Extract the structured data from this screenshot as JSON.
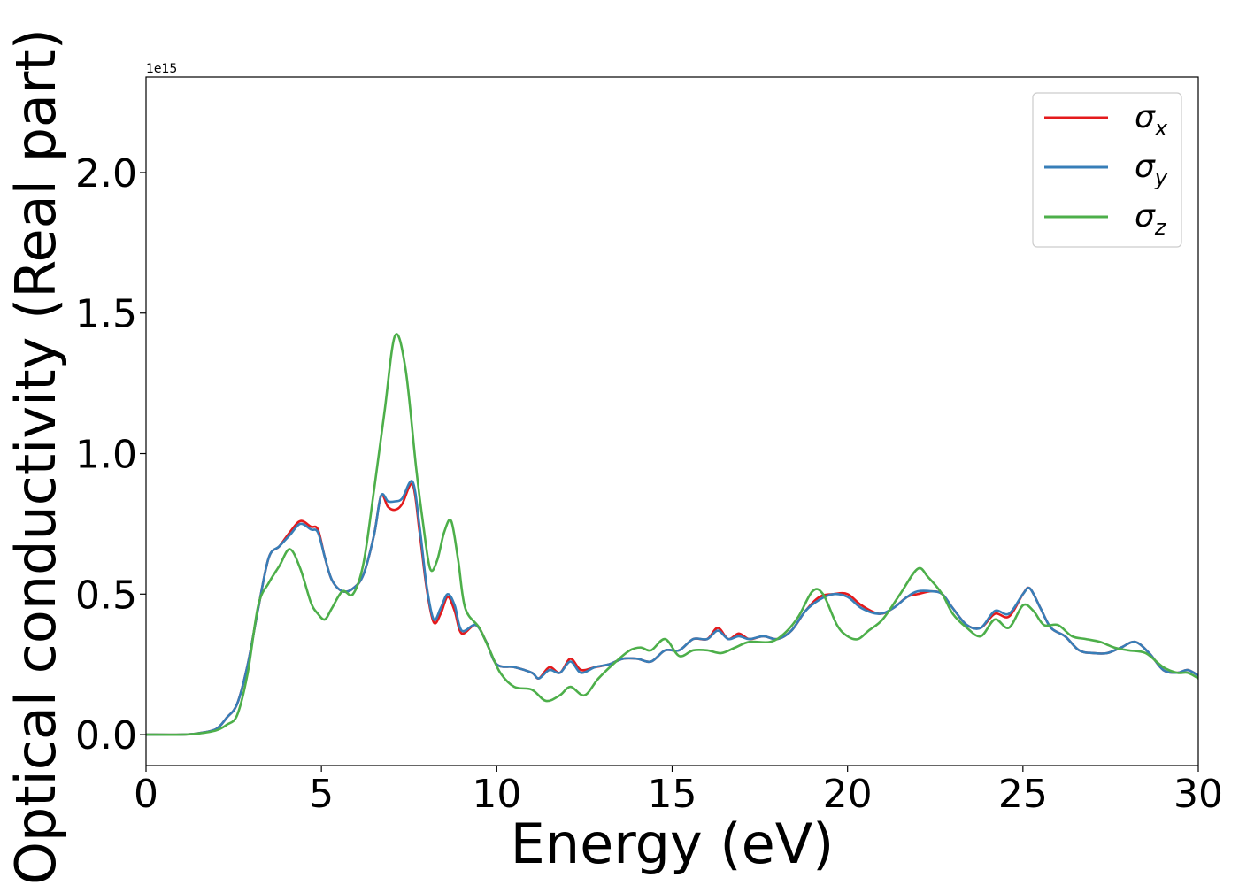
{
  "chart_data": {
    "type": "line",
    "title": "",
    "xlabel": "Energy (eV)",
    "ylabel": "Optical conductivity (Real part)",
    "y_offset_label": "1e15",
    "xlim": [
      0,
      30
    ],
    "ylim": [
      -0.11,
      2.34
    ],
    "x_ticks": [
      0,
      5,
      10,
      15,
      20,
      25,
      30
    ],
    "x_tick_labels": [
      "0",
      "5",
      "10",
      "15",
      "20",
      "25",
      "30"
    ],
    "y_ticks": [
      0.0,
      0.5,
      1.0,
      1.5,
      2.0
    ],
    "y_tick_labels": [
      "0.0",
      "0.5",
      "1.0",
      "1.5",
      "2.0"
    ],
    "grid": false,
    "legend_position": "top-right",
    "series": [
      {
        "name": "σx",
        "legend_symbol": "σ",
        "legend_subscript": "x",
        "color": "#e41a1c",
        "points": [
          [
            0,
            0
          ],
          [
            1,
            0.0
          ],
          [
            1.5,
            0.005
          ],
          [
            2,
            0.02
          ],
          [
            2.3,
            0.06
          ],
          [
            2.6,
            0.11
          ],
          [
            2.9,
            0.25
          ],
          [
            3.2,
            0.45
          ],
          [
            3.5,
            0.63
          ],
          [
            3.8,
            0.67
          ],
          [
            4.1,
            0.72
          ],
          [
            4.4,
            0.76
          ],
          [
            4.7,
            0.74
          ],
          [
            4.9,
            0.73
          ],
          [
            5.1,
            0.63
          ],
          [
            5.3,
            0.55
          ],
          [
            5.6,
            0.51
          ],
          [
            5.9,
            0.52
          ],
          [
            6.2,
            0.57
          ],
          [
            6.5,
            0.71
          ],
          [
            6.7,
            0.85
          ],
          [
            6.9,
            0.81
          ],
          [
            7.1,
            0.8
          ],
          [
            7.3,
            0.82
          ],
          [
            7.6,
            0.89
          ],
          [
            7.8,
            0.72
          ],
          [
            8.0,
            0.52
          ],
          [
            8.2,
            0.4
          ],
          [
            8.4,
            0.43
          ],
          [
            8.6,
            0.49
          ],
          [
            8.8,
            0.44
          ],
          [
            9.0,
            0.36
          ],
          [
            9.4,
            0.39
          ],
          [
            9.7,
            0.33
          ],
          [
            10.0,
            0.25
          ],
          [
            10.5,
            0.24
          ],
          [
            11.0,
            0.22
          ],
          [
            11.2,
            0.2
          ],
          [
            11.5,
            0.24
          ],
          [
            11.8,
            0.22
          ],
          [
            12.1,
            0.27
          ],
          [
            12.4,
            0.23
          ],
          [
            12.8,
            0.24
          ],
          [
            13.2,
            0.25
          ],
          [
            13.6,
            0.27
          ],
          [
            14.0,
            0.27
          ],
          [
            14.4,
            0.26
          ],
          [
            14.8,
            0.3
          ],
          [
            15.2,
            0.3
          ],
          [
            15.6,
            0.34
          ],
          [
            16.0,
            0.34
          ],
          [
            16.3,
            0.38
          ],
          [
            16.6,
            0.34
          ],
          [
            16.9,
            0.36
          ],
          [
            17.2,
            0.34
          ],
          [
            17.6,
            0.35
          ],
          [
            18.0,
            0.34
          ],
          [
            18.4,
            0.37
          ],
          [
            18.8,
            0.44
          ],
          [
            19.2,
            0.49
          ],
          [
            19.6,
            0.5
          ],
          [
            20.0,
            0.5
          ],
          [
            20.4,
            0.46
          ],
          [
            20.9,
            0.43
          ],
          [
            21.3,
            0.45
          ],
          [
            21.7,
            0.49
          ],
          [
            22.0,
            0.5
          ],
          [
            22.4,
            0.51
          ],
          [
            22.7,
            0.5
          ],
          [
            23.0,
            0.45
          ],
          [
            23.4,
            0.39
          ],
          [
            23.8,
            0.38
          ],
          [
            24.2,
            0.43
          ],
          [
            24.6,
            0.42
          ],
          [
            25.0,
            0.5
          ],
          [
            25.2,
            0.52
          ],
          [
            25.5,
            0.45
          ],
          [
            25.8,
            0.38
          ],
          [
            26.2,
            0.35
          ],
          [
            26.6,
            0.3
          ],
          [
            27.0,
            0.29
          ],
          [
            27.4,
            0.29
          ],
          [
            27.8,
            0.31
          ],
          [
            28.2,
            0.33
          ],
          [
            28.6,
            0.29
          ],
          [
            29.0,
            0.23
          ],
          [
            29.4,
            0.22
          ],
          [
            29.7,
            0.23
          ],
          [
            30.0,
            0.21
          ]
        ]
      },
      {
        "name": "σy",
        "legend_symbol": "σ",
        "legend_subscript": "y",
        "color": "#377eb8",
        "points": [
          [
            0,
            0
          ],
          [
            1,
            0.0
          ],
          [
            1.5,
            0.005
          ],
          [
            2,
            0.02
          ],
          [
            2.3,
            0.06
          ],
          [
            2.6,
            0.11
          ],
          [
            2.9,
            0.25
          ],
          [
            3.2,
            0.45
          ],
          [
            3.5,
            0.63
          ],
          [
            3.8,
            0.67
          ],
          [
            4.1,
            0.71
          ],
          [
            4.4,
            0.75
          ],
          [
            4.7,
            0.73
          ],
          [
            4.9,
            0.72
          ],
          [
            5.1,
            0.63
          ],
          [
            5.3,
            0.55
          ],
          [
            5.6,
            0.51
          ],
          [
            5.9,
            0.52
          ],
          [
            6.2,
            0.57
          ],
          [
            6.5,
            0.71
          ],
          [
            6.7,
            0.85
          ],
          [
            6.9,
            0.83
          ],
          [
            7.1,
            0.83
          ],
          [
            7.3,
            0.84
          ],
          [
            7.6,
            0.9
          ],
          [
            7.8,
            0.74
          ],
          [
            8.0,
            0.53
          ],
          [
            8.2,
            0.41
          ],
          [
            8.4,
            0.45
          ],
          [
            8.6,
            0.5
          ],
          [
            8.8,
            0.46
          ],
          [
            9.0,
            0.37
          ],
          [
            9.4,
            0.39
          ],
          [
            9.7,
            0.33
          ],
          [
            10.0,
            0.25
          ],
          [
            10.5,
            0.24
          ],
          [
            11.0,
            0.22
          ],
          [
            11.2,
            0.2
          ],
          [
            11.5,
            0.23
          ],
          [
            11.8,
            0.22
          ],
          [
            12.1,
            0.26
          ],
          [
            12.4,
            0.22
          ],
          [
            12.8,
            0.24
          ],
          [
            13.2,
            0.25
          ],
          [
            13.6,
            0.27
          ],
          [
            14.0,
            0.27
          ],
          [
            14.4,
            0.26
          ],
          [
            14.8,
            0.3
          ],
          [
            15.2,
            0.3
          ],
          [
            15.6,
            0.34
          ],
          [
            16.0,
            0.34
          ],
          [
            16.3,
            0.37
          ],
          [
            16.6,
            0.34
          ],
          [
            16.9,
            0.35
          ],
          [
            17.2,
            0.34
          ],
          [
            17.6,
            0.35
          ],
          [
            18.0,
            0.34
          ],
          [
            18.4,
            0.37
          ],
          [
            18.8,
            0.44
          ],
          [
            19.2,
            0.48
          ],
          [
            19.6,
            0.5
          ],
          [
            20.0,
            0.49
          ],
          [
            20.4,
            0.45
          ],
          [
            20.9,
            0.43
          ],
          [
            21.3,
            0.45
          ],
          [
            21.7,
            0.49
          ],
          [
            22.0,
            0.51
          ],
          [
            22.4,
            0.51
          ],
          [
            22.7,
            0.5
          ],
          [
            23.0,
            0.45
          ],
          [
            23.4,
            0.39
          ],
          [
            23.8,
            0.38
          ],
          [
            24.2,
            0.44
          ],
          [
            24.6,
            0.43
          ],
          [
            25.0,
            0.5
          ],
          [
            25.2,
            0.52
          ],
          [
            25.5,
            0.45
          ],
          [
            25.8,
            0.38
          ],
          [
            26.2,
            0.35
          ],
          [
            26.6,
            0.3
          ],
          [
            27.0,
            0.29
          ],
          [
            27.4,
            0.29
          ],
          [
            27.8,
            0.31
          ],
          [
            28.2,
            0.33
          ],
          [
            28.6,
            0.29
          ],
          [
            29.0,
            0.23
          ],
          [
            29.4,
            0.22
          ],
          [
            29.7,
            0.23
          ],
          [
            30.0,
            0.21
          ]
        ]
      },
      {
        "name": "σz",
        "legend_symbol": "σ",
        "legend_subscript": "z",
        "color": "#4daf4a",
        "points": [
          [
            0,
            0
          ],
          [
            1,
            0.0
          ],
          [
            1.5,
            0.004
          ],
          [
            2,
            0.015
          ],
          [
            2.3,
            0.035
          ],
          [
            2.6,
            0.07
          ],
          [
            2.9,
            0.22
          ],
          [
            3.2,
            0.46
          ],
          [
            3.5,
            0.54
          ],
          [
            3.8,
            0.6
          ],
          [
            4.1,
            0.66
          ],
          [
            4.4,
            0.59
          ],
          [
            4.7,
            0.47
          ],
          [
            4.9,
            0.43
          ],
          [
            5.1,
            0.41
          ],
          [
            5.3,
            0.45
          ],
          [
            5.6,
            0.51
          ],
          [
            5.9,
            0.5
          ],
          [
            6.2,
            0.61
          ],
          [
            6.5,
            0.87
          ],
          [
            6.8,
            1.15
          ],
          [
            7.1,
            1.42
          ],
          [
            7.4,
            1.3
          ],
          [
            7.7,
            0.95
          ],
          [
            7.9,
            0.75
          ],
          [
            8.1,
            0.59
          ],
          [
            8.3,
            0.62
          ],
          [
            8.5,
            0.72
          ],
          [
            8.7,
            0.76
          ],
          [
            8.9,
            0.62
          ],
          [
            9.1,
            0.45
          ],
          [
            9.5,
            0.38
          ],
          [
            9.8,
            0.3
          ],
          [
            10.1,
            0.22
          ],
          [
            10.5,
            0.17
          ],
          [
            11.0,
            0.16
          ],
          [
            11.4,
            0.12
          ],
          [
            11.8,
            0.14
          ],
          [
            12.1,
            0.17
          ],
          [
            12.5,
            0.14
          ],
          [
            12.9,
            0.2
          ],
          [
            13.4,
            0.26
          ],
          [
            13.8,
            0.3
          ],
          [
            14.1,
            0.31
          ],
          [
            14.4,
            0.3
          ],
          [
            14.8,
            0.34
          ],
          [
            15.2,
            0.28
          ],
          [
            15.6,
            0.3
          ],
          [
            16.0,
            0.3
          ],
          [
            16.4,
            0.29
          ],
          [
            16.8,
            0.31
          ],
          [
            17.2,
            0.33
          ],
          [
            17.8,
            0.33
          ],
          [
            18.2,
            0.36
          ],
          [
            18.6,
            0.42
          ],
          [
            19.0,
            0.51
          ],
          [
            19.3,
            0.5
          ],
          [
            19.7,
            0.39
          ],
          [
            20.0,
            0.35
          ],
          [
            20.3,
            0.34
          ],
          [
            20.6,
            0.37
          ],
          [
            21.0,
            0.41
          ],
          [
            21.5,
            0.5
          ],
          [
            22.0,
            0.59
          ],
          [
            22.3,
            0.56
          ],
          [
            22.7,
            0.5
          ],
          [
            23.0,
            0.43
          ],
          [
            23.4,
            0.38
          ],
          [
            23.8,
            0.35
          ],
          [
            24.2,
            0.41
          ],
          [
            24.6,
            0.38
          ],
          [
            25.0,
            0.46
          ],
          [
            25.3,
            0.44
          ],
          [
            25.6,
            0.39
          ],
          [
            26.0,
            0.39
          ],
          [
            26.4,
            0.35
          ],
          [
            26.8,
            0.34
          ],
          [
            27.2,
            0.33
          ],
          [
            27.6,
            0.31
          ],
          [
            28.0,
            0.3
          ],
          [
            28.5,
            0.29
          ],
          [
            29.0,
            0.24
          ],
          [
            29.4,
            0.22
          ],
          [
            29.7,
            0.22
          ],
          [
            30.0,
            0.2
          ]
        ]
      }
    ]
  }
}
